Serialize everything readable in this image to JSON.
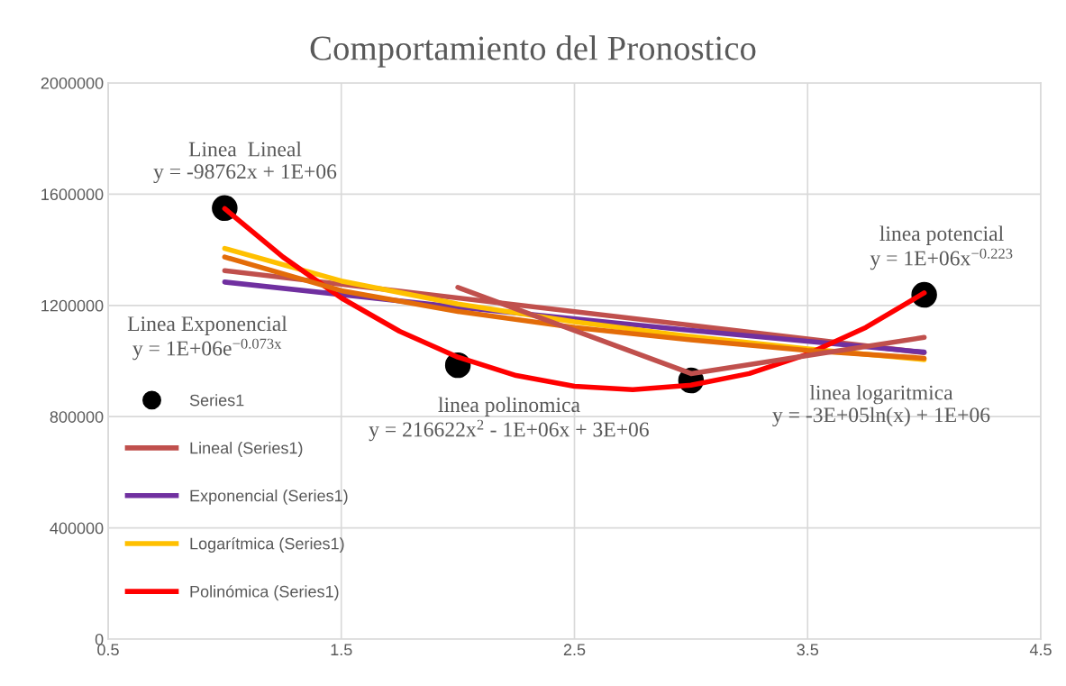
{
  "chart_data": {
    "type": "scatter",
    "title": "Comportamiento del Pronostico",
    "xlim": [
      0.5,
      4.5
    ],
    "xticks": [
      0.5,
      1.5,
      2.5,
      3.5,
      4.5
    ],
    "ylim": [
      0,
      2000000
    ],
    "yticks": [
      0,
      400000,
      800000,
      1200000,
      1600000,
      2000000
    ],
    "grid": true,
    "legend": "left",
    "series": [
      {
        "name": "Series1",
        "color": "#000000",
        "marker": "circle",
        "x": [
          1,
          2,
          3,
          4
        ],
        "values": [
          1550000,
          985000,
          930000,
          1238000
        ]
      },
      {
        "name": "Lineal (Series1)",
        "type": "line",
        "color": "#c0504d",
        "marker": "none",
        "x": [
          1,
          4
        ],
        "values": [
          1325000,
          1030000
        ]
      },
      {
        "name": "Exponencial (Series1)",
        "type": "line",
        "color": "#7030a0",
        "x": [
          1,
          2,
          3,
          4
        ],
        "values": [
          1284000,
          1194000,
          1110000,
          1032000
        ]
      },
      {
        "name": "Logarítmica (Series1)",
        "type": "line",
        "color": "#ffc000",
        "marker": "none",
        "x": [
          1,
          1.5,
          2,
          2.5,
          3,
          3.5,
          4
        ],
        "values": [
          1405000,
          1288000,
          1205000,
          1141000,
          1088000,
          1044000,
          1005000
        ]
      },
      {
        "name": "Polinómica (Series1)",
        "type": "line",
        "color": "#ff0000",
        "x": [
          1,
          1.25,
          1.5,
          1.75,
          2,
          2.25,
          2.5,
          2.75,
          3,
          3.25,
          3.5,
          3.75,
          4
        ],
        "values": [
          1548000,
          1374000,
          1227000,
          1107000,
          1014000,
          948000,
          909000,
          897000,
          913000,
          955000,
          1025000,
          1121000,
          1245000
        ]
      },
      {
        "type": "line",
        "color": "#e36c09",
        "marker": "none",
        "x": [
          1,
          1.5,
          2,
          2.5,
          3,
          3.5,
          4
        ],
        "values": [
          1374000,
          1253000,
          1178000,
          1121000,
          1076000,
          1038000,
          1010000
        ]
      },
      {
        "type": "line",
        "color": "#c0504d",
        "marker": "none",
        "x": [
          2,
          3,
          4
        ],
        "values": [
          1265000,
          955000,
          1085000
        ]
      }
    ],
    "annotations": [
      "Linea  Lineal\ny = -98762x + 1E+06",
      "Linea Exponencial\ny = 1E+06e$^{−0.073x}$",
      "linea polinomica\ny = 216622x$^{2}$ - 1E+06x + 3E+06",
      "linea logaritmica\ny = -3E+05ln(x) + 1E+06",
      "linea potencial\ny = 1E+06x$^{−0.223}$"
    ]
  }
}
